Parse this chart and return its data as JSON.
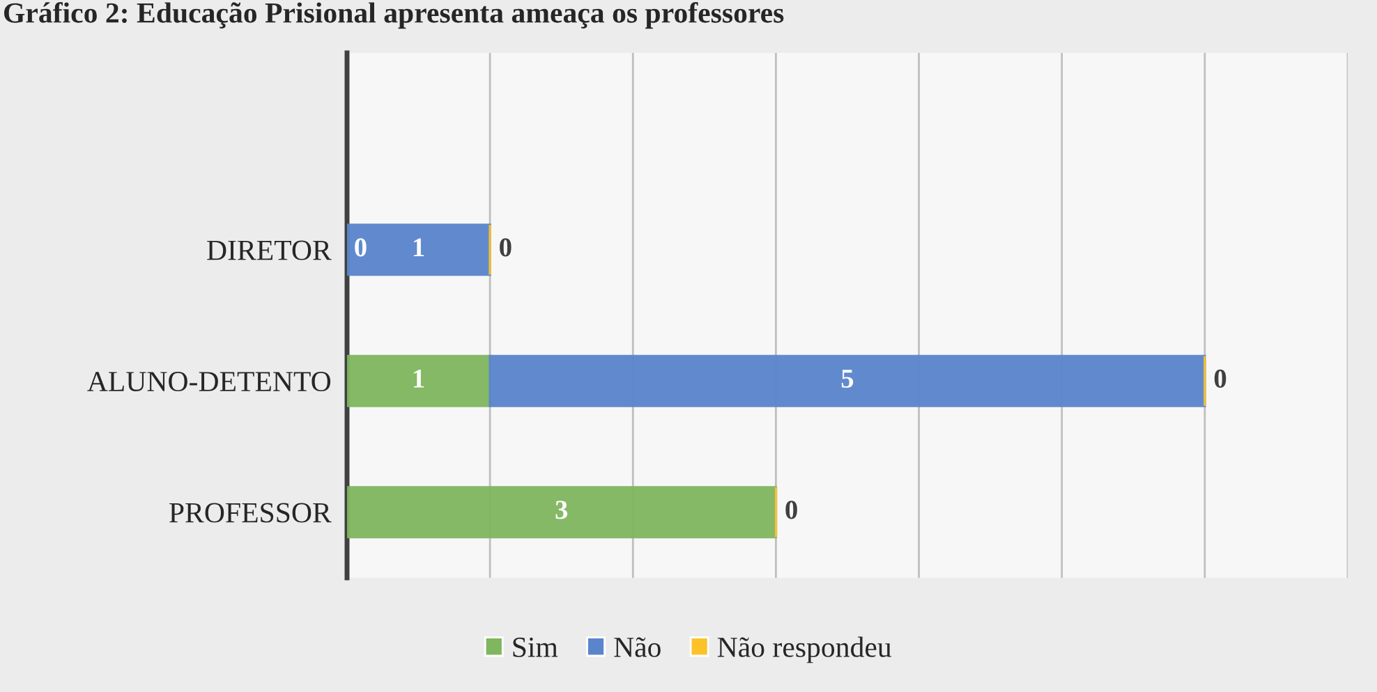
{
  "chart_data": {
    "type": "bar",
    "orientation": "horizontal",
    "stacked": true,
    "title": "Gráfico 2: Educação Prisional apresenta ameaça os professores",
    "categories": [
      "DIRETOR",
      "ALUNO-DETENTO",
      "PROFESSOR"
    ],
    "series": [
      {
        "name": "Sim",
        "color": "#7fb65f",
        "values": [
          0,
          1,
          3
        ],
        "value_labels": [
          "0",
          "1",
          "3"
        ]
      },
      {
        "name": "Não",
        "color": "#5a85cc",
        "values": [
          1,
          5,
          0
        ],
        "value_labels": [
          "1",
          "5",
          null
        ]
      },
      {
        "name": "Não respondeu",
        "color": "#fdc22a",
        "values": [
          0,
          0,
          0
        ],
        "value_labels": [
          "0",
          "0",
          "0"
        ]
      }
    ],
    "xlim": [
      0,
      7
    ],
    "xticks": [
      {
        "value": 0,
        "label": null
      },
      {
        "value": 1,
        "label": null
      },
      {
        "value": 2,
        "label": null
      },
      {
        "value": 3,
        "label": null
      },
      {
        "value": 4,
        "label": null
      },
      {
        "value": 5,
        "label": null
      },
      {
        "value": 6,
        "label": null
      },
      {
        "value": 7,
        "label": null
      }
    ],
    "grid": "x",
    "legend": "bottom"
  }
}
